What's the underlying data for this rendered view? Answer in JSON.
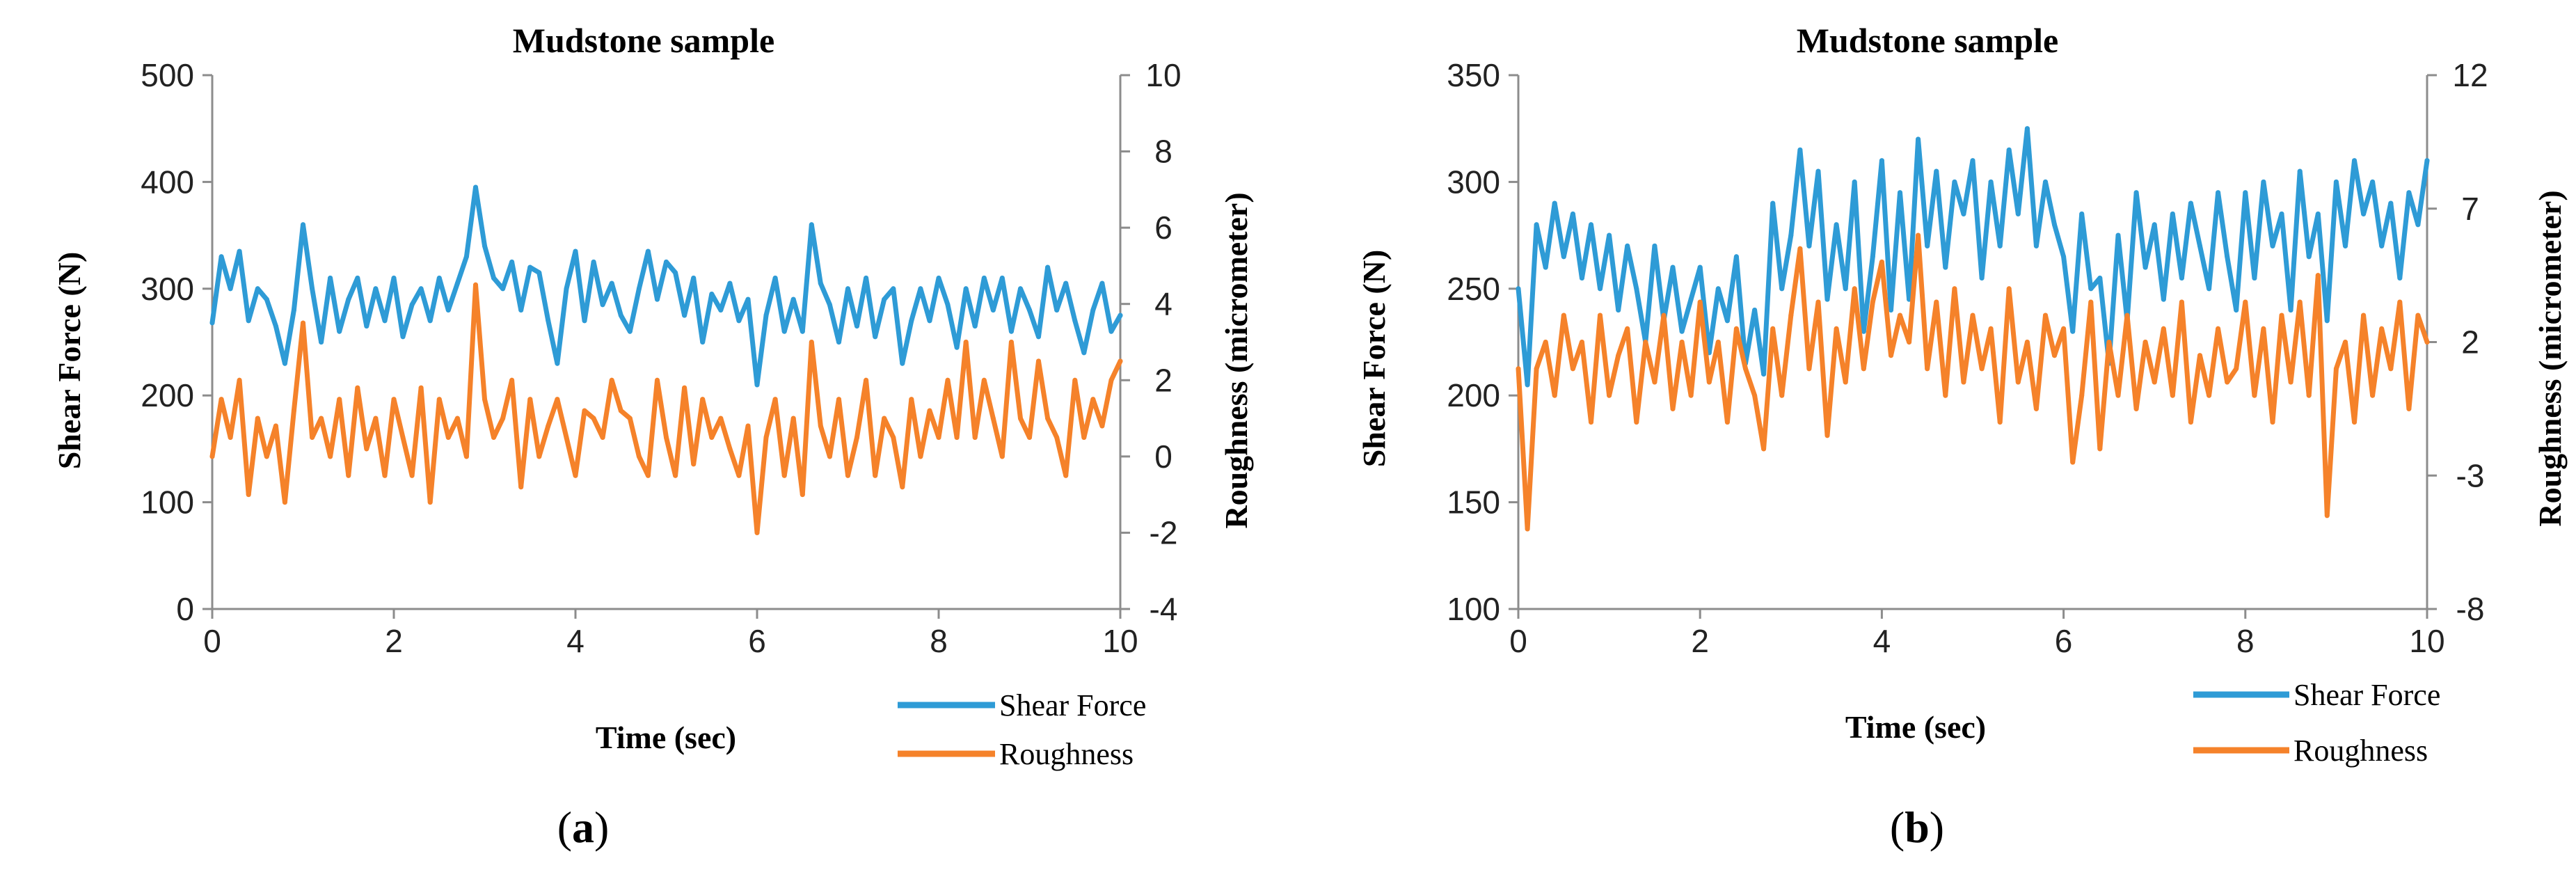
{
  "chart_data": [
    {
      "type": "line",
      "panel_label": "a",
      "title": "Mudstone sample",
      "xlabel": "Time (sec)",
      "ylabel_left": "Shear  Force (N)",
      "ylabel_right": "Roughness (micrometer)",
      "xlim": [
        0,
        10
      ],
      "ylim_left": [
        0,
        500
      ],
      "ylim_right": [
        -4,
        10
      ],
      "xticks": [
        0,
        2,
        4,
        6,
        8,
        10
      ],
      "yticks_left": [
        0,
        100,
        200,
        300,
        400,
        500
      ],
      "yticks_right": [
        -4,
        -2,
        0,
        2,
        4,
        6,
        8,
        10
      ],
      "grid": false,
      "legend_position": "bottom-right",
      "series": [
        {
          "name": "Shear Force",
          "axis": "left",
          "color": "#2e9bd6",
          "x": [
            0,
            0.1,
            0.2,
            0.3,
            0.4,
            0.5,
            0.6,
            0.7,
            0.8,
            0.9,
            1.0,
            1.1,
            1.2,
            1.3,
            1.4,
            1.5,
            1.6,
            1.7,
            1.8,
            1.9,
            2.0,
            2.1,
            2.2,
            2.3,
            2.4,
            2.5,
            2.6,
            2.7,
            2.8,
            2.9,
            3.0,
            3.1,
            3.2,
            3.3,
            3.4,
            3.5,
            3.6,
            3.7,
            3.8,
            3.9,
            4.0,
            4.1,
            4.2,
            4.3,
            4.4,
            4.5,
            4.6,
            4.7,
            4.8,
            4.9,
            5.0,
            5.1,
            5.2,
            5.3,
            5.4,
            5.5,
            5.6,
            5.7,
            5.8,
            5.9,
            6.0,
            6.1,
            6.2,
            6.3,
            6.4,
            6.5,
            6.6,
            6.7,
            6.8,
            6.9,
            7.0,
            7.1,
            7.2,
            7.3,
            7.4,
            7.5,
            7.6,
            7.7,
            7.8,
            7.9,
            8.0,
            8.1,
            8.2,
            8.3,
            8.4,
            8.5,
            8.6,
            8.7,
            8.8,
            8.9,
            9.0,
            9.1,
            9.2,
            9.3,
            9.4,
            9.5,
            9.6,
            9.7,
            9.8,
            9.9,
            10.0
          ],
          "values": [
            268,
            330,
            300,
            335,
            270,
            300,
            290,
            265,
            230,
            280,
            360,
            300,
            250,
            310,
            260,
            290,
            310,
            265,
            300,
            270,
            310,
            255,
            285,
            300,
            270,
            310,
            280,
            305,
            330,
            395,
            340,
            310,
            300,
            325,
            280,
            320,
            315,
            270,
            230,
            300,
            335,
            270,
            325,
            285,
            305,
            275,
            260,
            300,
            335,
            290,
            325,
            315,
            275,
            310,
            250,
            295,
            280,
            305,
            270,
            290,
            210,
            275,
            310,
            260,
            290,
            260,
            360,
            305,
            285,
            250,
            300,
            265,
            310,
            255,
            290,
            300,
            230,
            270,
            300,
            270,
            310,
            285,
            245,
            300,
            265,
            310,
            280,
            310,
            260,
            300,
            280,
            255,
            320,
            280,
            305,
            270,
            240,
            280,
            305,
            260,
            275
          ]
        },
        {
          "name": "Roughness",
          "axis": "right",
          "color": "#f5822a",
          "x": [
            0,
            0.1,
            0.2,
            0.3,
            0.4,
            0.5,
            0.6,
            0.7,
            0.8,
            0.9,
            1.0,
            1.1,
            1.2,
            1.3,
            1.4,
            1.5,
            1.6,
            1.7,
            1.8,
            1.9,
            2.0,
            2.1,
            2.2,
            2.3,
            2.4,
            2.5,
            2.6,
            2.7,
            2.8,
            2.9,
            3.0,
            3.1,
            3.2,
            3.3,
            3.4,
            3.5,
            3.6,
            3.7,
            3.8,
            3.9,
            4.0,
            4.1,
            4.2,
            4.3,
            4.4,
            4.5,
            4.6,
            4.7,
            4.8,
            4.9,
            5.0,
            5.1,
            5.2,
            5.3,
            5.4,
            5.5,
            5.6,
            5.7,
            5.8,
            5.9,
            6.0,
            6.1,
            6.2,
            6.3,
            6.4,
            6.5,
            6.6,
            6.7,
            6.8,
            6.9,
            7.0,
            7.1,
            7.2,
            7.3,
            7.4,
            7.5,
            7.6,
            7.7,
            7.8,
            7.9,
            8.0,
            8.1,
            8.2,
            8.3,
            8.4,
            8.5,
            8.6,
            8.7,
            8.8,
            8.9,
            9.0,
            9.1,
            9.2,
            9.3,
            9.4,
            9.5,
            9.6,
            9.7,
            9.8,
            9.9,
            10.0
          ],
          "values": [
            0,
            1.5,
            0.5,
            2,
            -1,
            1,
            0,
            0.8,
            -1.2,
            1.2,
            3.5,
            0.5,
            1,
            0,
            1.5,
            -0.5,
            1.8,
            0.2,
            1,
            -0.5,
            1.5,
            0.5,
            -0.5,
            1.8,
            -1.2,
            1.5,
            0.5,
            1,
            0,
            4.5,
            1.5,
            0.5,
            1,
            2,
            -0.8,
            1.5,
            0,
            0.8,
            1.5,
            0.5,
            -0.5,
            1.2,
            1,
            0.5,
            2,
            1.2,
            1,
            0,
            -0.5,
            2,
            0.5,
            -0.5,
            1.8,
            -0.2,
            1.5,
            0.5,
            1,
            0.2,
            -0.5,
            0.8,
            -2,
            0.5,
            1.5,
            -0.5,
            1,
            -1,
            3,
            0.8,
            0,
            1.5,
            -0.5,
            0.5,
            2,
            -0.5,
            1,
            0.5,
            -0.8,
            1.5,
            0,
            1.2,
            0.5,
            2,
            0.5,
            3,
            0.5,
            2,
            1,
            0,
            3,
            1,
            0.5,
            2.5,
            1,
            0.5,
            -0.5,
            2,
            0.5,
            1.5,
            0.8,
            2,
            2.5
          ]
        }
      ]
    },
    {
      "type": "line",
      "panel_label": "b",
      "title": "Mudstone sample",
      "xlabel": "Time (sec)",
      "ylabel_left": "Shear Force (N)",
      "ylabel_right": "Roughness (micrometer)",
      "xlim": [
        0,
        10
      ],
      "ylim_left": [
        100,
        350
      ],
      "ylim_right": [
        -8,
        12
      ],
      "xticks": [
        0,
        2,
        4,
        6,
        8,
        10
      ],
      "yticks_left": [
        100,
        150,
        200,
        250,
        300,
        350
      ],
      "yticks_right": [
        -8,
        -3,
        2,
        7,
        12
      ],
      "grid": false,
      "legend_position": "bottom-right",
      "series": [
        {
          "name": "Shear Force",
          "axis": "left",
          "color": "#2e9bd6",
          "x": [
            0,
            0.1,
            0.2,
            0.3,
            0.4,
            0.5,
            0.6,
            0.7,
            0.8,
            0.9,
            1.0,
            1.1,
            1.2,
            1.3,
            1.4,
            1.5,
            1.6,
            1.7,
            1.8,
            1.9,
            2.0,
            2.1,
            2.2,
            2.3,
            2.4,
            2.5,
            2.6,
            2.7,
            2.8,
            2.9,
            3.0,
            3.1,
            3.2,
            3.3,
            3.4,
            3.5,
            3.6,
            3.7,
            3.8,
            3.9,
            4.0,
            4.1,
            4.2,
            4.3,
            4.4,
            4.5,
            4.6,
            4.7,
            4.8,
            4.9,
            5.0,
            5.1,
            5.2,
            5.3,
            5.4,
            5.5,
            5.6,
            5.7,
            5.8,
            5.9,
            6.0,
            6.1,
            6.2,
            6.3,
            6.4,
            6.5,
            6.6,
            6.7,
            6.8,
            6.9,
            7.0,
            7.1,
            7.2,
            7.3,
            7.4,
            7.5,
            7.6,
            7.7,
            7.8,
            7.9,
            8.0,
            8.1,
            8.2,
            8.3,
            8.4,
            8.5,
            8.6,
            8.7,
            8.8,
            8.9,
            9.0,
            9.1,
            9.2,
            9.3,
            9.4,
            9.5,
            9.6,
            9.7,
            9.8,
            9.9,
            10.0
          ],
          "values": [
            250,
            205,
            280,
            260,
            290,
            265,
            285,
            255,
            280,
            250,
            275,
            240,
            270,
            250,
            225,
            270,
            235,
            260,
            230,
            245,
            260,
            220,
            250,
            235,
            265,
            215,
            240,
            210,
            290,
            250,
            275,
            315,
            270,
            305,
            245,
            280,
            250,
            300,
            230,
            265,
            310,
            240,
            295,
            245,
            320,
            270,
            305,
            260,
            300,
            285,
            310,
            255,
            300,
            270,
            315,
            285,
            325,
            270,
            300,
            280,
            265,
            230,
            285,
            250,
            255,
            215,
            275,
            235,
            295,
            260,
            280,
            245,
            285,
            255,
            290,
            270,
            250,
            295,
            265,
            240,
            295,
            255,
            300,
            270,
            285,
            240,
            305,
            265,
            285,
            235,
            300,
            270,
            310,
            285,
            300,
            270,
            290,
            255,
            295,
            280,
            310
          ]
        },
        {
          "name": "Roughness",
          "axis": "right",
          "color": "#f5822a",
          "x": [
            0,
            0.1,
            0.2,
            0.3,
            0.4,
            0.5,
            0.6,
            0.7,
            0.8,
            0.9,
            1.0,
            1.1,
            1.2,
            1.3,
            1.4,
            1.5,
            1.6,
            1.7,
            1.8,
            1.9,
            2.0,
            2.1,
            2.2,
            2.3,
            2.4,
            2.5,
            2.6,
            2.7,
            2.8,
            2.9,
            3.0,
            3.1,
            3.2,
            3.3,
            3.4,
            3.5,
            3.6,
            3.7,
            3.8,
            3.9,
            4.0,
            4.1,
            4.2,
            4.3,
            4.4,
            4.5,
            4.6,
            4.7,
            4.8,
            4.9,
            5.0,
            5.1,
            5.2,
            5.3,
            5.4,
            5.5,
            5.6,
            5.7,
            5.8,
            5.9,
            6.0,
            6.1,
            6.2,
            6.3,
            6.4,
            6.5,
            6.6,
            6.7,
            6.8,
            6.9,
            7.0,
            7.1,
            7.2,
            7.3,
            7.4,
            7.5,
            7.6,
            7.7,
            7.8,
            7.9,
            8.0,
            8.1,
            8.2,
            8.3,
            8.4,
            8.5,
            8.6,
            8.7,
            8.8,
            8.9,
            9.0,
            9.1,
            9.2,
            9.3,
            9.4,
            9.5,
            9.6,
            9.7,
            9.8,
            9.9,
            10.0
          ],
          "values": [
            1,
            -5,
            1,
            2,
            0,
            3,
            1,
            2,
            -1,
            3,
            0,
            1.5,
            2.5,
            -1,
            2,
            0.5,
            3,
            -0.5,
            2,
            0,
            3.5,
            0.5,
            2,
            -1,
            2.5,
            1,
            0,
            -2,
            2.5,
            0,
            3,
            5.5,
            1,
            3.5,
            -1.5,
            2.5,
            0.5,
            4,
            1,
            3.5,
            5,
            1.5,
            3,
            2,
            6,
            1,
            3.5,
            0,
            4,
            0.5,
            3,
            1,
            2.5,
            -1,
            4,
            0.5,
            2,
            -0.5,
            3,
            1.5,
            2.5,
            -2.5,
            0,
            3.5,
            -2,
            2,
            0,
            3,
            -0.5,
            2,
            0.5,
            2.5,
            0,
            3.5,
            -1,
            1.5,
            0,
            2.5,
            0.5,
            1,
            3.5,
            0,
            2.5,
            -1,
            3,
            0.5,
            3.5,
            0,
            4.5,
            -4.5,
            1,
            2,
            -1,
            3,
            0,
            2.5,
            1,
            3.5,
            -0.5,
            3,
            2
          ]
        }
      ]
    }
  ]
}
